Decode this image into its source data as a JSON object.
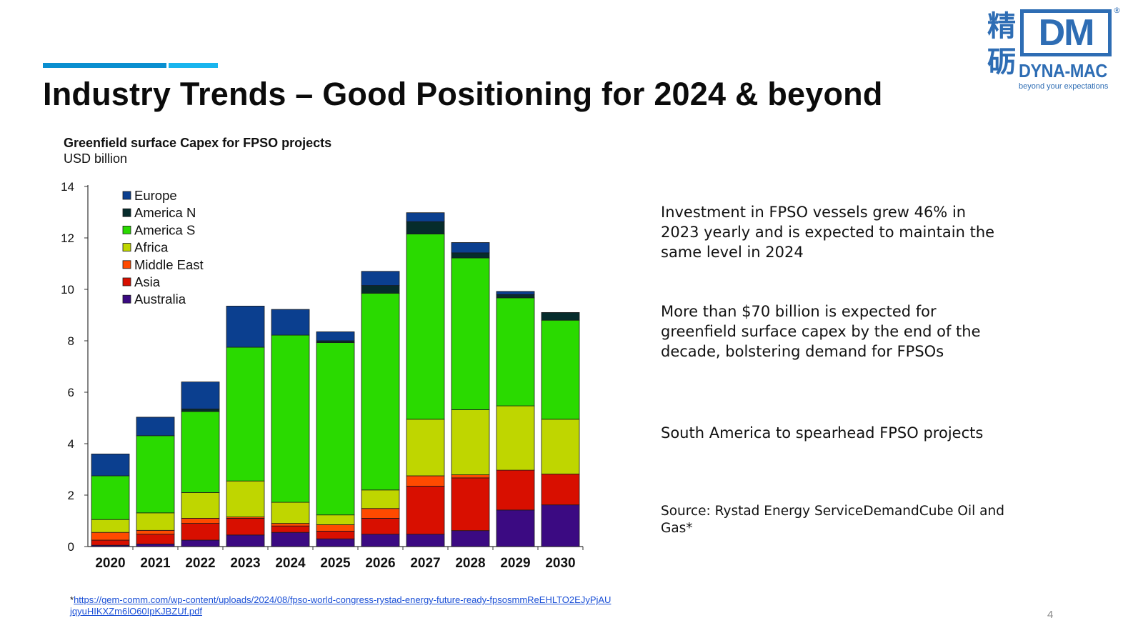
{
  "slide": {
    "title": "Industry Trends – Good Positioning for 2024 & beyond",
    "page_number": "4",
    "accent_colors": [
      "#0a8fd0",
      "#19b5ee"
    ]
  },
  "logo": {
    "chinese_chars": "精砺",
    "mark": "DM",
    "brand": "DYNA-MAC",
    "tagline": "beyond your expectations",
    "registered": "®",
    "color": "#2e6db4"
  },
  "bullets": [
    "Investment in FPSO vessels grew 46% in 2023 yearly and is expected to maintain the same level in 2024",
    "More than $70 billion is expected for greenfield surface capex by the end of the decade, bolstering demand for FPSOs",
    "South America to spearhead FPSO projects"
  ],
  "source_note": "Source: Rystad Energy ServiceDemandCube Oil and Gas*",
  "footnote": {
    "marker": "*",
    "url": "https://gem-comm.com/wp-content/uploads/2024/08/fpso-world-congress-rystad-energy-future-ready-fpsosmmReEHLTO2EJyPjAUjqyuHIKXZm6lO60IpKJBZUf.pdf"
  },
  "chart_data": {
    "type": "bar",
    "stacked": true,
    "title": "Greenfield surface Capex for FPSO projects",
    "ylabel": "USD billion",
    "xlabel": "",
    "ylim": [
      0,
      14
    ],
    "yticks": [
      0,
      2,
      4,
      6,
      8,
      10,
      12,
      14
    ],
    "legend_position": "top-left",
    "categories": [
      "2020",
      "2021",
      "2022",
      "2023",
      "2024",
      "2025",
      "2026",
      "2027",
      "2028",
      "2029",
      "2030"
    ],
    "series": [
      {
        "name": "Australia",
        "color": "#3b0a82",
        "values": [
          0.05,
          0.1,
          0.25,
          0.45,
          0.55,
          0.3,
          0.48,
          0.48,
          0.62,
          1.42,
          1.62
        ]
      },
      {
        "name": "Asia",
        "color": "#d80f00",
        "values": [
          0.2,
          0.38,
          0.65,
          0.65,
          0.25,
          0.3,
          0.62,
          1.87,
          2.05,
          1.55,
          1.2
        ]
      },
      {
        "name": "Middle East",
        "color": "#ff4a00",
        "values": [
          0.3,
          0.15,
          0.2,
          0.05,
          0.1,
          0.25,
          0.38,
          0.4,
          0.12,
          0.0,
          0.0
        ]
      },
      {
        "name": "Africa",
        "color": "#bfd600",
        "values": [
          0.5,
          0.68,
          1.0,
          1.4,
          0.82,
          0.38,
          0.72,
          2.2,
          2.53,
          2.5,
          2.13
        ]
      },
      {
        "name": "America S",
        "color": "#2ada00",
        "values": [
          1.7,
          3.0,
          3.15,
          5.2,
          6.5,
          6.7,
          7.65,
          7.2,
          5.9,
          4.2,
          3.85
        ]
      },
      {
        "name": "America N",
        "color": "#062c2c",
        "values": [
          0.0,
          0.0,
          0.1,
          0.0,
          0.0,
          0.07,
          0.3,
          0.48,
          0.2,
          0.13,
          0.3
        ]
      },
      {
        "name": "Europe",
        "color": "#0b3f8f",
        "values": [
          0.85,
          0.72,
          1.05,
          1.6,
          1.0,
          0.35,
          0.55,
          0.35,
          0.4,
          0.12,
          0.0
        ]
      }
    ]
  }
}
